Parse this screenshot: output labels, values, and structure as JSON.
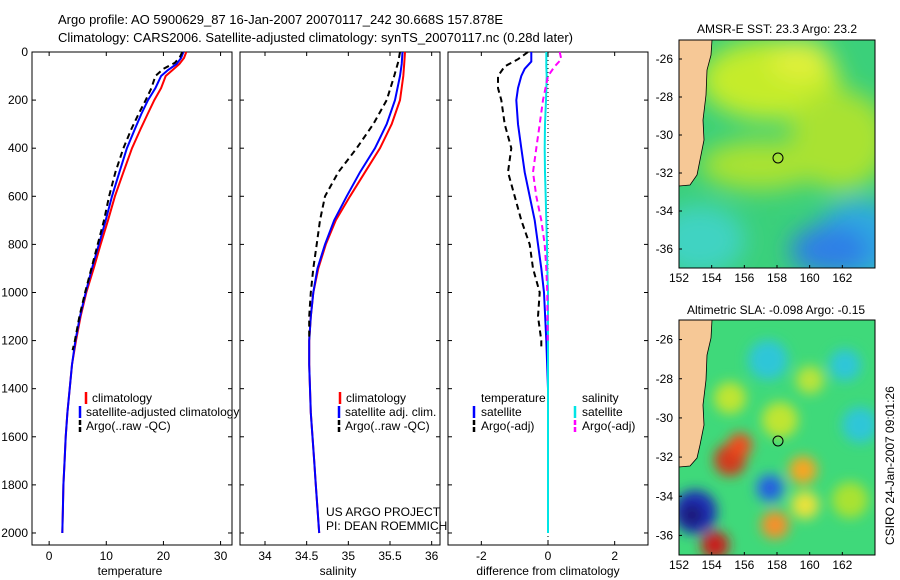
{
  "header": {
    "line1": "Argo profile: AO 5900629_87 16-Jan-2007 20070117_242 30.668S 157.878E",
    "line2": "Climatology: CARS2006. Satellite-adjusted climatology: synTS_20070117.nc (0.28d later)"
  },
  "colors": {
    "climatology": "#ff0000",
    "satellite": "#0000ff",
    "argo": "#000000",
    "sat_salinity": "#00e5e5",
    "argo_salinity": "#ff00ff"
  },
  "chart_data": [
    {
      "type": "line",
      "panel": "temperature",
      "xlabel": "temperature",
      "ylabel": "",
      "xlim": [
        -3,
        32
      ],
      "ylim": [
        2050,
        0
      ],
      "xticks": [
        0,
        10,
        20,
        30
      ],
      "yticks": [
        0,
        200,
        400,
        600,
        800,
        1000,
        1200,
        1400,
        1600,
        1800,
        2000
      ],
      "legend": [
        "climatology",
        "satellite-adjusted climatology",
        "Argo(..raw -QC)"
      ],
      "series": [
        {
          "name": "climatology",
          "color": "#ff0000",
          "dash": "",
          "points": [
            [
              24.0,
              0
            ],
            [
              23.6,
              25
            ],
            [
              22.8,
              50
            ],
            [
              21.6,
              75
            ],
            [
              20.4,
              100
            ],
            [
              19.6,
              150
            ],
            [
              18.4,
              200
            ],
            [
              17.2,
              260
            ],
            [
              16.0,
              320
            ],
            [
              14.5,
              400
            ],
            [
              13.0,
              500
            ],
            [
              11.5,
              600
            ],
            [
              10.3,
              700
            ],
            [
              9.0,
              800
            ],
            [
              7.8,
              900
            ],
            [
              6.5,
              1000
            ],
            [
              5.5,
              1100
            ],
            [
              4.7,
              1200
            ],
            [
              4.0,
              1300
            ],
            [
              3.6,
              1400
            ],
            [
              3.2,
              1500
            ],
            [
              2.9,
              1600
            ],
            [
              2.7,
              1700
            ],
            [
              2.5,
              1800
            ],
            [
              2.4,
              1900
            ],
            [
              2.3,
              2000
            ]
          ]
        },
        {
          "name": "satellite-adjusted climatology",
          "color": "#0000ff",
          "dash": "",
          "points": [
            [
              23.5,
              0
            ],
            [
              23.1,
              25
            ],
            [
              22.3,
              50
            ],
            [
              20.8,
              75
            ],
            [
              19.6,
              100
            ],
            [
              18.6,
              150
            ],
            [
              17.3,
              200
            ],
            [
              16.1,
              260
            ],
            [
              15.0,
              320
            ],
            [
              13.6,
              400
            ],
            [
              12.3,
              500
            ],
            [
              11.0,
              600
            ],
            [
              9.9,
              700
            ],
            [
              8.7,
              800
            ],
            [
              7.5,
              900
            ],
            [
              6.4,
              1000
            ],
            [
              5.4,
              1100
            ],
            [
              4.6,
              1200
            ],
            [
              4.0,
              1300
            ],
            [
              3.6,
              1400
            ],
            [
              3.2,
              1500
            ],
            [
              2.9,
              1600
            ],
            [
              2.7,
              1700
            ],
            [
              2.5,
              1800
            ],
            [
              2.4,
              1900
            ],
            [
              2.3,
              2000
            ]
          ]
        },
        {
          "name": "Argo(..raw -QC)",
          "color": "#000000",
          "dash": "6,4",
          "points": [
            [
              23.3,
              0
            ],
            [
              22.9,
              20
            ],
            [
              22.0,
              45
            ],
            [
              20.0,
              70
            ],
            [
              18.6,
              100
            ],
            [
              17.9,
              150
            ],
            [
              16.9,
              200
            ],
            [
              15.6,
              260
            ],
            [
              14.4,
              320
            ],
            [
              13.0,
              400
            ],
            [
              11.6,
              500
            ],
            [
              10.5,
              600
            ],
            [
              9.6,
              700
            ],
            [
              8.5,
              800
            ],
            [
              7.4,
              900
            ],
            [
              6.3,
              1000
            ],
            [
              5.3,
              1100
            ],
            [
              4.5,
              1200
            ],
            [
              4.1,
              1240
            ]
          ]
        }
      ]
    },
    {
      "type": "line",
      "panel": "salinity",
      "xlabel": "salinity",
      "ylabel": "",
      "xlim": [
        33.7,
        36.1
      ],
      "ylim": [
        2050,
        0
      ],
      "xticks": [
        34,
        34.5,
        35,
        35.5,
        36
      ],
      "legend": [
        "climatology",
        "satellite adj. clim.",
        "Argo(..raw -QC)"
      ],
      "series": [
        {
          "name": "climatology",
          "color": "#ff0000",
          "dash": "",
          "points": [
            [
              35.68,
              0
            ],
            [
              35.67,
              50
            ],
            [
              35.66,
              100
            ],
            [
              35.62,
              200
            ],
            [
              35.52,
              300
            ],
            [
              35.38,
              400
            ],
            [
              35.2,
              500
            ],
            [
              35.02,
              600
            ],
            [
              34.85,
              700
            ],
            [
              34.73,
              800
            ],
            [
              34.64,
              900
            ],
            [
              34.58,
              1000
            ],
            [
              34.55,
              1100
            ],
            [
              34.53,
              1200
            ],
            [
              34.53,
              1300
            ],
            [
              34.54,
              1400
            ],
            [
              34.55,
              1500
            ],
            [
              34.57,
              1600
            ],
            [
              34.59,
              1700
            ],
            [
              34.61,
              1800
            ],
            [
              34.63,
              1900
            ],
            [
              34.65,
              2000
            ]
          ]
        },
        {
          "name": "satellite adj. clim.",
          "color": "#0000ff",
          "dash": "",
          "points": [
            [
              35.65,
              0
            ],
            [
              35.64,
              50
            ],
            [
              35.62,
              100
            ],
            [
              35.56,
              200
            ],
            [
              35.46,
              300
            ],
            [
              35.32,
              400
            ],
            [
              35.14,
              500
            ],
            [
              34.98,
              600
            ],
            [
              34.83,
              700
            ],
            [
              34.72,
              800
            ],
            [
              34.63,
              900
            ],
            [
              34.58,
              1000
            ],
            [
              34.55,
              1100
            ],
            [
              34.53,
              1200
            ],
            [
              34.53,
              1300
            ],
            [
              34.54,
              1400
            ],
            [
              34.55,
              1500
            ],
            [
              34.57,
              1600
            ],
            [
              34.59,
              1700
            ],
            [
              34.61,
              1800
            ],
            [
              34.63,
              1900
            ],
            [
              34.65,
              2000
            ]
          ]
        },
        {
          "name": "Argo(..raw -QC)",
          "color": "#000000",
          "dash": "6,4",
          "points": [
            [
              35.62,
              0
            ],
            [
              35.6,
              40
            ],
            [
              35.55,
              100
            ],
            [
              35.46,
              200
            ],
            [
              35.3,
              300
            ],
            [
              35.1,
              400
            ],
            [
              34.88,
              500
            ],
            [
              34.72,
              600
            ],
            [
              34.66,
              700
            ],
            [
              34.62,
              800
            ],
            [
              34.58,
              900
            ],
            [
              34.55,
              1000
            ],
            [
              34.53,
              1100
            ],
            [
              34.53,
              1200
            ]
          ]
        }
      ]
    },
    {
      "type": "line",
      "panel": "difference",
      "xlabel": "difference from climatology",
      "ylabel": "",
      "xlim": [
        -3.0,
        3.0
      ],
      "ylim": [
        2050,
        0
      ],
      "xticks": [
        -2,
        0,
        2
      ],
      "legend_groups": [
        {
          "title": "temperature",
          "entries": [
            "satellite",
            "Argo(-adj)"
          ]
        },
        {
          "title": "salinity",
          "entries": [
            "satellite",
            "Argo(-adj)"
          ]
        }
      ],
      "series": [
        {
          "name": "temperature satellite",
          "color": "#0000ff",
          "dash": "",
          "points": [
            [
              -0.5,
              0
            ],
            [
              -0.5,
              40
            ],
            [
              -0.7,
              70
            ],
            [
              -0.8,
              100
            ],
            [
              -0.9,
              150
            ],
            [
              -0.95,
              200
            ],
            [
              -0.9,
              300
            ],
            [
              -0.8,
              400
            ],
            [
              -0.7,
              500
            ],
            [
              -0.55,
              600
            ],
            [
              -0.4,
              700
            ],
            [
              -0.3,
              800
            ],
            [
              -0.2,
              900
            ],
            [
              -0.12,
              1000
            ],
            [
              -0.05,
              1200
            ],
            [
              0.0,
              1400
            ],
            [
              0.0,
              2000
            ]
          ]
        },
        {
          "name": "temperature Argo(-adj)",
          "color": "#000000",
          "dash": "6,4",
          "points": [
            [
              -0.6,
              0
            ],
            [
              -0.9,
              30
            ],
            [
              -1.3,
              60
            ],
            [
              -1.5,
              100
            ],
            [
              -1.5,
              150
            ],
            [
              -1.4,
              200
            ],
            [
              -1.3,
              300
            ],
            [
              -1.1,
              400
            ],
            [
              -1.2,
              500
            ],
            [
              -1.0,
              600
            ],
            [
              -0.8,
              700
            ],
            [
              -0.55,
              800
            ],
            [
              -0.45,
              900
            ],
            [
              -0.25,
              1000
            ],
            [
              -0.3,
              1100
            ],
            [
              -0.2,
              1200
            ],
            [
              -0.2,
              1240
            ]
          ]
        },
        {
          "name": "salinity satellite",
          "color": "#00e5e5",
          "dash": "",
          "points": [
            [
              -0.05,
              0
            ],
            [
              -0.05,
              60
            ],
            [
              -0.04,
              100
            ],
            [
              -0.06,
              200
            ],
            [
              -0.09,
              300
            ],
            [
              -0.1,
              400
            ],
            [
              -0.09,
              500
            ],
            [
              -0.07,
              600
            ],
            [
              -0.05,
              700
            ],
            [
              -0.03,
              800
            ],
            [
              -0.02,
              900
            ],
            [
              0.0,
              1000
            ],
            [
              0.0,
              2000
            ]
          ]
        },
        {
          "name": "salinity Argo(-adj)",
          "color": "#ff00ff",
          "dash": "6,4",
          "points": [
            [
              0.35,
              0
            ],
            [
              0.4,
              30
            ],
            [
              0.2,
              60
            ],
            [
              0.0,
              100
            ],
            [
              -0.15,
              200
            ],
            [
              -0.25,
              300
            ],
            [
              -0.35,
              400
            ],
            [
              -0.45,
              500
            ],
            [
              -0.35,
              600
            ],
            [
              -0.2,
              700
            ],
            [
              -0.1,
              800
            ],
            [
              -0.05,
              900
            ],
            [
              -0.02,
              1000
            ],
            [
              -0.01,
              1200
            ]
          ]
        }
      ]
    }
  ],
  "projects": {
    "line1": "US ARGO PROJECT",
    "line2": "PI: DEAN ROEMMICH"
  },
  "maps": {
    "sst": {
      "title": "AMSR-E SST: 23.3 Argo: 23.2",
      "xticks": [
        "152",
        "154",
        "156",
        "158",
        "160",
        "162"
      ],
      "yticks": [
        "-26",
        "-28",
        "-30",
        "-32",
        "-34",
        "-36"
      ],
      "xlim": [
        152,
        164
      ],
      "ylim": [
        -37,
        -25
      ],
      "float_position": [
        157.878,
        -30.668
      ]
    },
    "sla": {
      "title": "Altimetric SLA: -0.098 Argo: -0.15",
      "xticks": [
        "152",
        "154",
        "156",
        "158",
        "160",
        "162"
      ],
      "yticks": [
        "-26",
        "-28",
        "-30",
        "-32",
        "-34",
        "-36"
      ],
      "xlim": [
        152,
        164
      ],
      "ylim": [
        -37,
        -25
      ],
      "float_position": [
        157.878,
        -30.668
      ]
    }
  },
  "footer": {
    "credit": "CSIRO 24-Jan-2007 09:01:26"
  }
}
